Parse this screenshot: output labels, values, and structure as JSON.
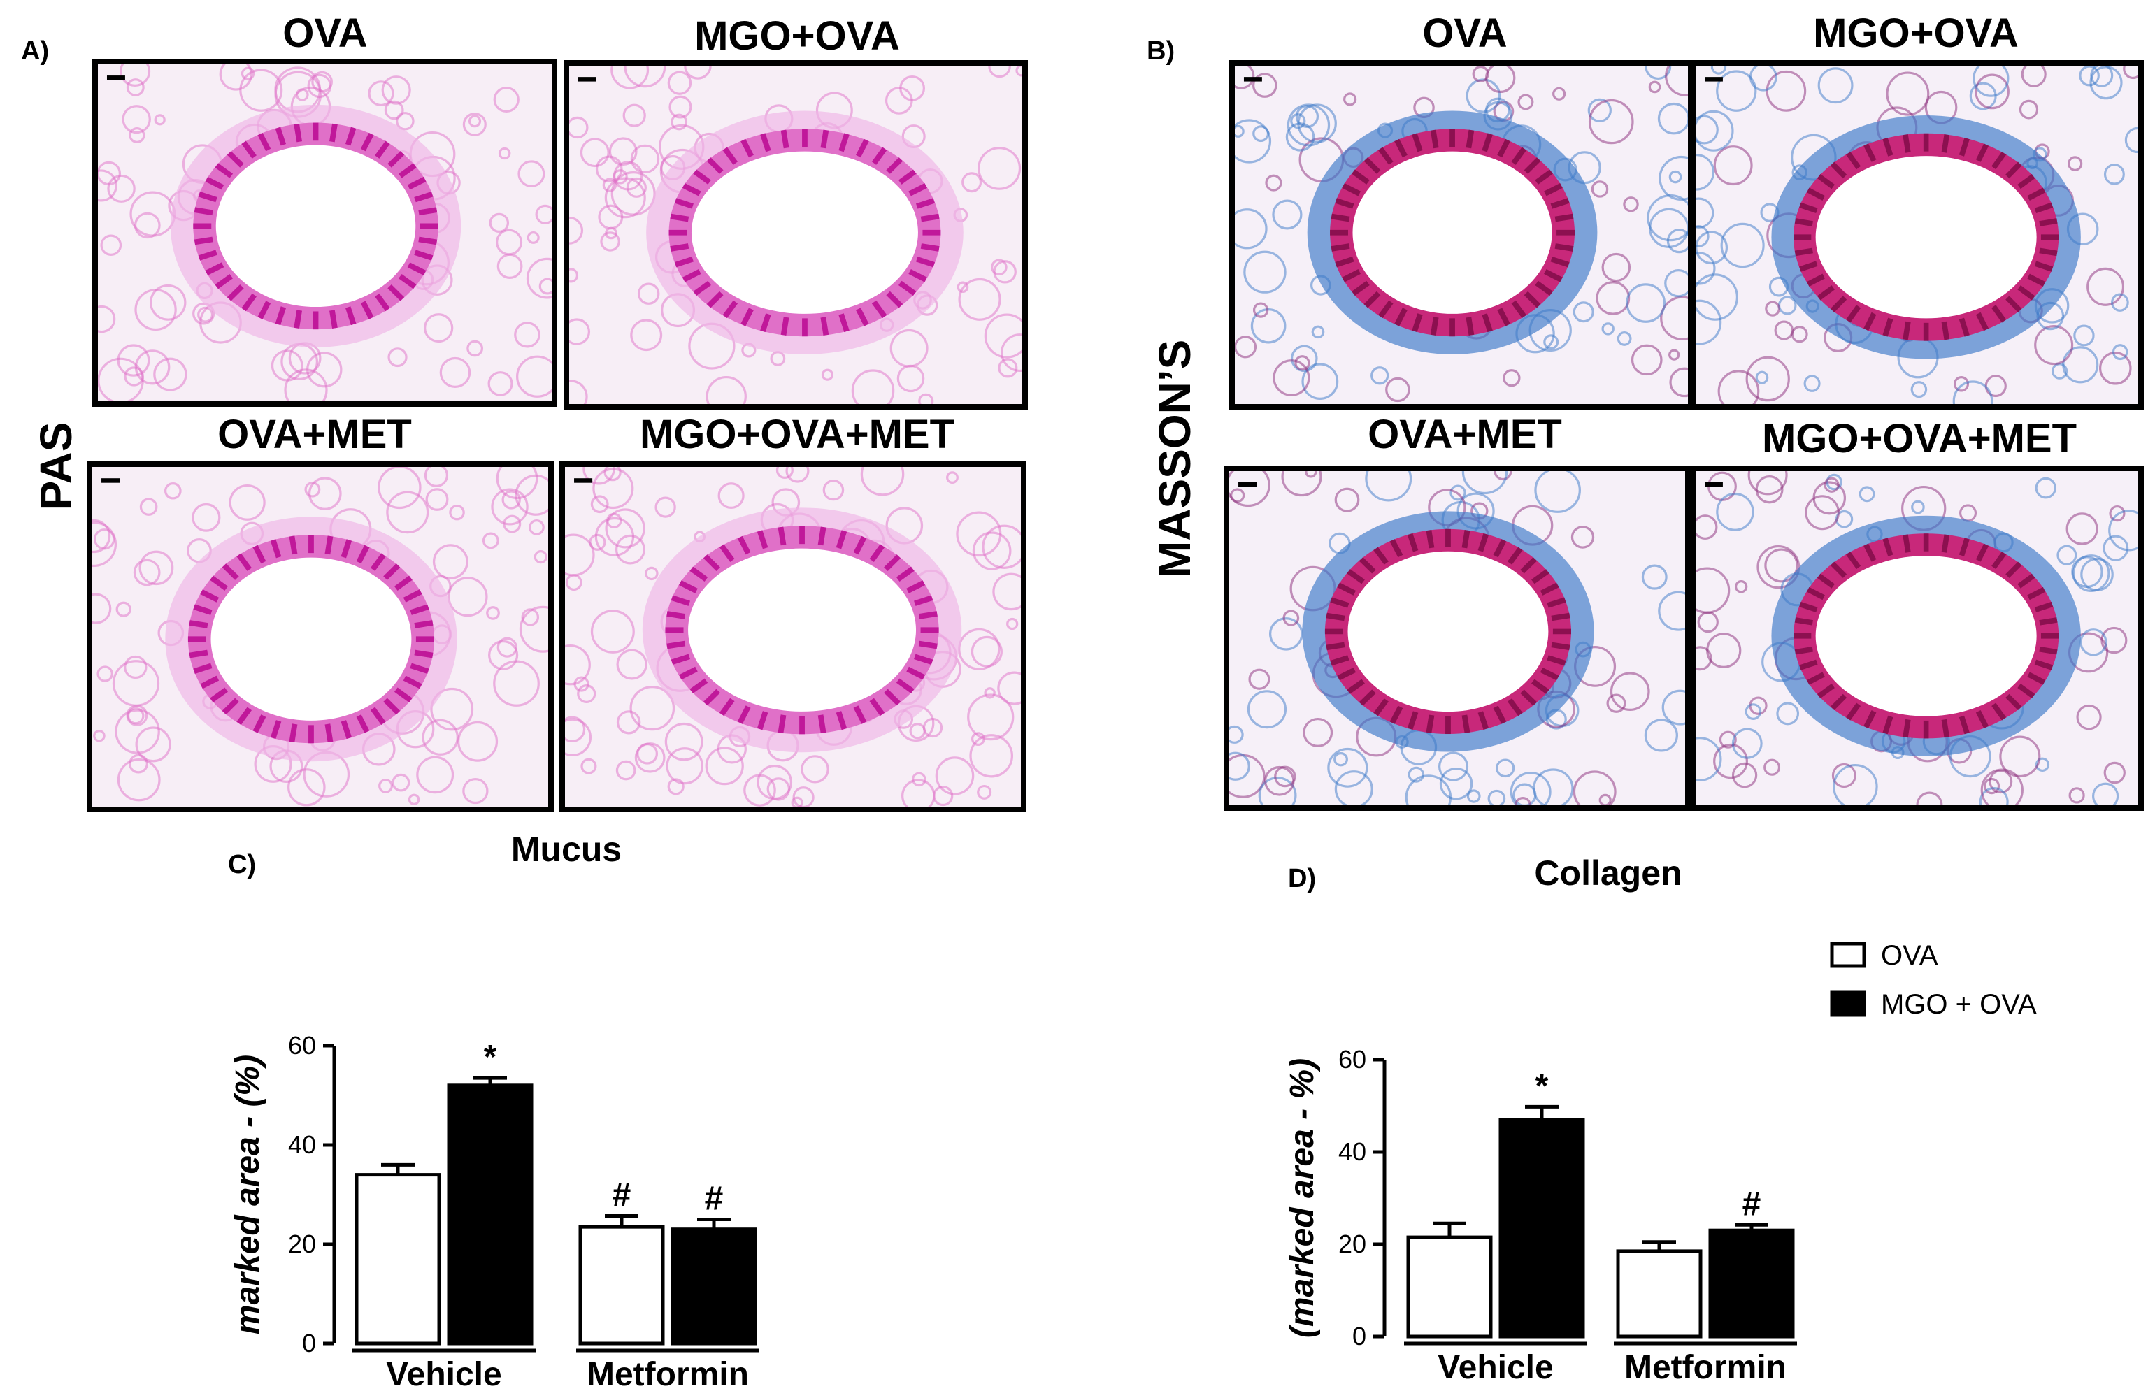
{
  "panelA": {
    "letter": "A)",
    "stain_label": "PAS",
    "images": [
      {
        "title": "OVA",
        "tissue": "pas-airway"
      },
      {
        "title": "MGO+OVA",
        "tissue": "pas-airway"
      },
      {
        "title": "OVA+MET",
        "tissue": "pas-airway"
      },
      {
        "title": "MGO+OVA+MET",
        "tissue": "pas-airway"
      }
    ]
  },
  "panelB": {
    "letter": "B)",
    "stain_label": "MASSON’S",
    "images": [
      {
        "title": "OVA",
        "tissue": "masson-airway"
      },
      {
        "title": "MGO+OVA",
        "tissue": "masson-airway"
      },
      {
        "title": "OVA+MET",
        "tissue": "masson-airway"
      },
      {
        "title": "MGO+OVA+MET",
        "tissue": "masson-airway"
      }
    ]
  },
  "panelC": {
    "letter": "C)"
  },
  "panelD": {
    "letter": "D)"
  },
  "colors": {
    "pas_background": "#f7eef6",
    "pas_wall": "#e070c8",
    "pas_epithelium": "#c0189a",
    "masson_collagen": "#3a78c8",
    "masson_epithelium": "#c8287a",
    "masson_cells": "#8a2a7a",
    "bar_ova": "#ffffff",
    "bar_mgo": "#000000"
  },
  "chart_data": [
    {
      "type": "bar",
      "title": "Mucus",
      "ylabel": "marked area - (%)",
      "ylim": [
        0,
        60
      ],
      "yticks": [
        0,
        20,
        40,
        60
      ],
      "categories": [
        "Vehicle",
        "Metformin"
      ],
      "series": [
        {
          "name": "OVA",
          "values": [
            34,
            23.5
          ],
          "errors": [
            2,
            2.2
          ],
          "annotations": [
            "",
            "#"
          ]
        },
        {
          "name": "MGO + OVA",
          "values": [
            52,
            23
          ],
          "errors": [
            1.5,
            2
          ],
          "annotations": [
            "*",
            "#"
          ]
        }
      ]
    },
    {
      "type": "bar",
      "title": "Collagen",
      "ylabel": "(marked area - %)",
      "ylim": [
        0,
        60
      ],
      "yticks": [
        0,
        20,
        40,
        60
      ],
      "categories": [
        "Vehicle",
        "Metformin"
      ],
      "series": [
        {
          "name": "OVA",
          "values": [
            21.5,
            18.5
          ],
          "errors": [
            3,
            2
          ],
          "annotations": [
            "",
            ""
          ]
        },
        {
          "name": "MGO + OVA",
          "values": [
            47,
            23
          ],
          "errors": [
            2.8,
            1.2
          ],
          "annotations": [
            "*",
            "#"
          ]
        }
      ],
      "legend": {
        "position": "top-right",
        "entries": [
          "OVA",
          "MGO + OVA"
        ]
      }
    }
  ]
}
